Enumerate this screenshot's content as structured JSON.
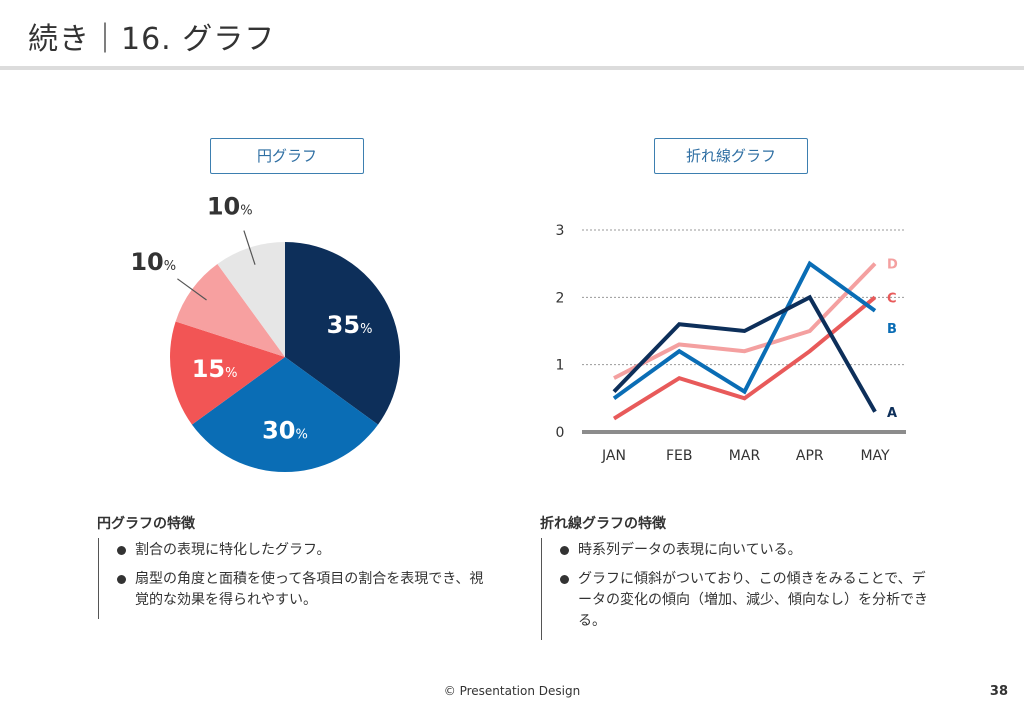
{
  "header": {
    "title": "続き｜16. グラフ"
  },
  "pie_panel": {
    "label": "円グラフ",
    "heading": "円グラフの特徴",
    "bullets": [
      "割合の表現に特化したグラフ。",
      "扇型の角度と面積を使って各項目の割合を表現でき、視覚的な効果を得られやすい。"
    ]
  },
  "line_panel": {
    "label": "折れ線グラフ",
    "heading": "折れ線グラフの特徴",
    "bullets": [
      "時系列データの表現に向いている。",
      "グラフに傾斜がついており、この傾きをみることで、データの変化の傾向（増加、減少、傾向なし）を分析できる。"
    ]
  },
  "colors": {
    "navy": "#0d2f5a",
    "blue": "#0a6db5",
    "red": "#e85a5a",
    "pink": "#f4a0a0",
    "light_gray": "#e6e6e6",
    "axis": "#999999"
  },
  "chart_data": [
    {
      "type": "pie",
      "title": "円グラフ",
      "slices": [
        {
          "value": 35,
          "label": "35",
          "unit": "%",
          "color": "#0d2f5a"
        },
        {
          "value": 30,
          "label": "30",
          "unit": "%",
          "color": "#0a6db5"
        },
        {
          "value": 15,
          "label": "15",
          "unit": "%",
          "color": "#f25555"
        },
        {
          "value": 10,
          "label": "10",
          "unit": "%",
          "color": "#f7a0a0"
        },
        {
          "value": 10,
          "label": "10",
          "unit": "%",
          "color": "#e6e6e6"
        }
      ]
    },
    {
      "type": "line",
      "title": "折れ線グラフ",
      "categories": [
        "JAN",
        "FEB",
        "MAR",
        "APR",
        "MAY"
      ],
      "ylim": [
        0,
        3
      ],
      "yticks": [
        0,
        1,
        2,
        3
      ],
      "grid": true,
      "series": [
        {
          "name": "A",
          "values": [
            0.6,
            1.6,
            1.5,
            2.0,
            0.3
          ],
          "color": "#0d2f5a"
        },
        {
          "name": "B",
          "values": [
            0.5,
            1.2,
            0.6,
            2.5,
            1.8
          ],
          "color": "#0a6db5"
        },
        {
          "name": "C",
          "values": [
            0.2,
            0.8,
            0.5,
            1.2,
            2.0
          ],
          "color": "#e85a5a"
        },
        {
          "name": "D",
          "values": [
            0.8,
            1.3,
            1.2,
            1.5,
            2.5
          ],
          "color": "#f4a0a0"
        }
      ]
    }
  ],
  "footer": {
    "copyright": "© Presentation Design",
    "page_number": "38"
  }
}
